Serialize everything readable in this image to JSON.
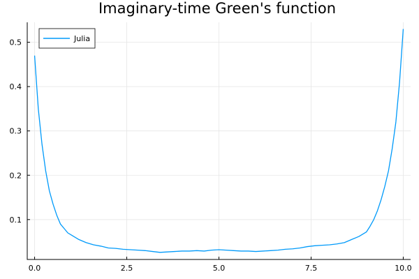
{
  "chart_data": {
    "type": "line",
    "title": "Imaginary-time Green's function",
    "xlabel": "",
    "ylabel": "",
    "xlim": [
      -0.2,
      10.2
    ],
    "ylim": [
      0.01,
      0.545
    ],
    "xticks": [
      0.0,
      2.5,
      5.0,
      7.5,
      10.0
    ],
    "xtick_labels": [
      "0.0",
      "2.5",
      "5.0",
      "7.5",
      "10.0"
    ],
    "yticks": [
      0.1,
      0.2,
      0.3,
      0.4,
      0.5
    ],
    "ytick_labels": [
      "0.1",
      "0.2",
      "0.3",
      "0.4",
      "0.5"
    ],
    "grid": true,
    "legend_position": "top-left",
    "series": [
      {
        "name": "Julia",
        "color": "#009AFA",
        "x": [
          0.0,
          0.1,
          0.2,
          0.3,
          0.4,
          0.5,
          0.6,
          0.7,
          0.8,
          0.9,
          1.0,
          1.2,
          1.4,
          1.6,
          1.8,
          2.0,
          2.2,
          2.4,
          2.6,
          2.8,
          3.0,
          3.2,
          3.4,
          3.6,
          3.8,
          4.0,
          4.2,
          4.4,
          4.6,
          4.8,
          5.0,
          5.2,
          5.4,
          5.6,
          5.8,
          6.0,
          6.2,
          6.4,
          6.6,
          6.8,
          7.0,
          7.2,
          7.4,
          7.6,
          7.8,
          8.0,
          8.2,
          8.4,
          8.6,
          8.8,
          9.0,
          9.1,
          9.2,
          9.3,
          9.4,
          9.5,
          9.6,
          9.7,
          9.8,
          9.9,
          10.0
        ],
        "y": [
          0.47,
          0.35,
          0.27,
          0.21,
          0.165,
          0.135,
          0.11,
          0.09,
          0.08,
          0.07,
          0.065,
          0.055,
          0.048,
          0.043,
          0.04,
          0.036,
          0.035,
          0.033,
          0.032,
          0.031,
          0.03,
          0.028,
          0.026,
          0.027,
          0.028,
          0.029,
          0.029,
          0.03,
          0.029,
          0.031,
          0.032,
          0.031,
          0.03,
          0.029,
          0.029,
          0.028,
          0.029,
          0.03,
          0.031,
          0.033,
          0.034,
          0.036,
          0.039,
          0.041,
          0.042,
          0.043,
          0.045,
          0.048,
          0.055,
          0.062,
          0.072,
          0.085,
          0.1,
          0.12,
          0.145,
          0.175,
          0.21,
          0.26,
          0.32,
          0.41,
          0.53
        ]
      }
    ]
  }
}
